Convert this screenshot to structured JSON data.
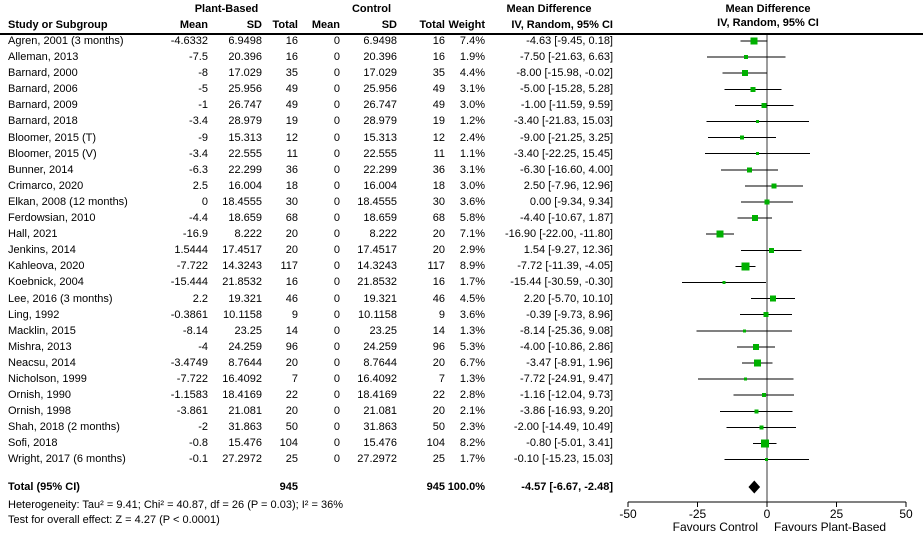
{
  "header": {
    "group1": "Plant-Based",
    "group2": "Control",
    "col_study": "Study or Subgroup",
    "col_mean1": "Mean",
    "col_sd1": "SD",
    "col_total1": "Total",
    "col_mean2": "Mean",
    "col_sd2": "SD",
    "col_total2": "Total",
    "col_weight": "Weight",
    "md_title": "Mean Difference",
    "md_sub": "IV, Random, 95% CI",
    "plot_title": "Mean Difference",
    "plot_sub": "IV, Random, 95% CI"
  },
  "table": {
    "rows": [
      {
        "study": "Agren, 2001 (3 months)",
        "pb_mean": "-4.6332",
        "pb_sd": "6.9498",
        "pb_total": "16",
        "c_mean": "0",
        "c_sd": "6.9498",
        "c_total": "16",
        "weight": "7.4%",
        "md_ci": "-4.63 [-9.45, 0.18]"
      },
      {
        "study": "Alleman, 2013",
        "pb_mean": "-7.5",
        "pb_sd": "20.396",
        "pb_total": "16",
        "c_mean": "0",
        "c_sd": "20.396",
        "c_total": "16",
        "weight": "1.9%",
        "md_ci": "-7.50 [-21.63, 6.63]"
      },
      {
        "study": "Barnard, 2000",
        "pb_mean": "-8",
        "pb_sd": "17.029",
        "pb_total": "35",
        "c_mean": "0",
        "c_sd": "17.029",
        "c_total": "35",
        "weight": "4.4%",
        "md_ci": "-8.00 [-15.98, -0.02]"
      },
      {
        "study": "Barnard, 2006",
        "pb_mean": "-5",
        "pb_sd": "25.956",
        "pb_total": "49",
        "c_mean": "0",
        "c_sd": "25.956",
        "c_total": "49",
        "weight": "3.1%",
        "md_ci": "-5.00 [-15.28, 5.28]"
      },
      {
        "study": "Barnard, 2009",
        "pb_mean": "-1",
        "pb_sd": "26.747",
        "pb_total": "49",
        "c_mean": "0",
        "c_sd": "26.747",
        "c_total": "49",
        "weight": "3.0%",
        "md_ci": "-1.00 [-11.59, 9.59]"
      },
      {
        "study": "Barnard, 2018",
        "pb_mean": "-3.4",
        "pb_sd": "28.979",
        "pb_total": "19",
        "c_mean": "0",
        "c_sd": "28.979",
        "c_total": "19",
        "weight": "1.2%",
        "md_ci": "-3.40 [-21.83, 15.03]"
      },
      {
        "study": "Bloomer, 2015 (T)",
        "pb_mean": "-9",
        "pb_sd": "15.313",
        "pb_total": "12",
        "c_mean": "0",
        "c_sd": "15.313",
        "c_total": "12",
        "weight": "2.4%",
        "md_ci": "-9.00 [-21.25, 3.25]"
      },
      {
        "study": "Bloomer, 2015 (V)",
        "pb_mean": "-3.4",
        "pb_sd": "22.555",
        "pb_total": "11",
        "c_mean": "0",
        "c_sd": "22.555",
        "c_total": "11",
        "weight": "1.1%",
        "md_ci": "-3.40 [-22.25, 15.45]"
      },
      {
        "study": "Bunner, 2014",
        "pb_mean": "-6.3",
        "pb_sd": "22.299",
        "pb_total": "36",
        "c_mean": "0",
        "c_sd": "22.299",
        "c_total": "36",
        "weight": "3.1%",
        "md_ci": "-6.30 [-16.60, 4.00]"
      },
      {
        "study": "Crimarco, 2020",
        "pb_mean": "2.5",
        "pb_sd": "16.004",
        "pb_total": "18",
        "c_mean": "0",
        "c_sd": "16.004",
        "c_total": "18",
        "weight": "3.0%",
        "md_ci": "2.50 [-7.96, 12.96]"
      },
      {
        "study": "Elkan, 2008 (12 months)",
        "pb_mean": "0",
        "pb_sd": "18.4555",
        "pb_total": "30",
        "c_mean": "0",
        "c_sd": "18.4555",
        "c_total": "30",
        "weight": "3.6%",
        "md_ci": "0.00 [-9.34, 9.34]"
      },
      {
        "study": "Ferdowsian, 2010",
        "pb_mean": "-4.4",
        "pb_sd": "18.659",
        "pb_total": "68",
        "c_mean": "0",
        "c_sd": "18.659",
        "c_total": "68",
        "weight": "5.8%",
        "md_ci": "-4.40 [-10.67, 1.87]"
      },
      {
        "study": "Hall, 2021",
        "pb_mean": "-16.9",
        "pb_sd": "8.222",
        "pb_total": "20",
        "c_mean": "0",
        "c_sd": "8.222",
        "c_total": "20",
        "weight": "7.1%",
        "md_ci": "-16.90 [-22.00, -11.80]"
      },
      {
        "study": "Jenkins, 2014",
        "pb_mean": "1.5444",
        "pb_sd": "17.4517",
        "pb_total": "20",
        "c_mean": "0",
        "c_sd": "17.4517",
        "c_total": "20",
        "weight": "2.9%",
        "md_ci": "1.54 [-9.27, 12.36]"
      },
      {
        "study": "Kahleova, 2020",
        "pb_mean": "-7.722",
        "pb_sd": "14.3243",
        "pb_total": "117",
        "c_mean": "0",
        "c_sd": "14.3243",
        "c_total": "117",
        "weight": "8.9%",
        "md_ci": "-7.72 [-11.39, -4.05]"
      },
      {
        "study": "Koebnick, 2004",
        "pb_mean": "-15.444",
        "pb_sd": "21.8532",
        "pb_total": "16",
        "c_mean": "0",
        "c_sd": "21.8532",
        "c_total": "16",
        "weight": "1.7%",
        "md_ci": "-15.44 [-30.59, -0.30]"
      },
      {
        "study": "Lee, 2016 (3 months)",
        "pb_mean": "2.2",
        "pb_sd": "19.321",
        "pb_total": "46",
        "c_mean": "0",
        "c_sd": "19.321",
        "c_total": "46",
        "weight": "4.5%",
        "md_ci": "2.20 [-5.70, 10.10]"
      },
      {
        "study": "Ling, 1992",
        "pb_mean": "-0.3861",
        "pb_sd": "10.1158",
        "pb_total": "9",
        "c_mean": "0",
        "c_sd": "10.1158",
        "c_total": "9",
        "weight": "3.6%",
        "md_ci": "-0.39 [-9.73, 8.96]"
      },
      {
        "study": "Macklin, 2015",
        "pb_mean": "-8.14",
        "pb_sd": "23.25",
        "pb_total": "14",
        "c_mean": "0",
        "c_sd": "23.25",
        "c_total": "14",
        "weight": "1.3%",
        "md_ci": "-8.14 [-25.36, 9.08]"
      },
      {
        "study": "Mishra, 2013",
        "pb_mean": "-4",
        "pb_sd": "24.259",
        "pb_total": "96",
        "c_mean": "0",
        "c_sd": "24.259",
        "c_total": "96",
        "weight": "5.3%",
        "md_ci": "-4.00 [-10.86, 2.86]"
      },
      {
        "study": "Neacsu, 2014",
        "pb_mean": "-3.4749",
        "pb_sd": "8.7644",
        "pb_total": "20",
        "c_mean": "0",
        "c_sd": "8.7644",
        "c_total": "20",
        "weight": "6.7%",
        "md_ci": "-3.47 [-8.91, 1.96]"
      },
      {
        "study": "Nicholson, 1999",
        "pb_mean": "-7.722",
        "pb_sd": "16.4092",
        "pb_total": "7",
        "c_mean": "0",
        "c_sd": "16.4092",
        "c_total": "7",
        "weight": "1.3%",
        "md_ci": "-7.72 [-24.91, 9.47]"
      },
      {
        "study": "Ornish, 1990",
        "pb_mean": "-1.1583",
        "pb_sd": "18.4169",
        "pb_total": "22",
        "c_mean": "0",
        "c_sd": "18.4169",
        "c_total": "22",
        "weight": "2.8%",
        "md_ci": "-1.16 [-12.04, 9.73]"
      },
      {
        "study": "Ornish, 1998",
        "pb_mean": "-3.861",
        "pb_sd": "21.081",
        "pb_total": "20",
        "c_mean": "0",
        "c_sd": "21.081",
        "c_total": "20",
        "weight": "2.1%",
        "md_ci": "-3.86 [-16.93, 9.20]"
      },
      {
        "study": "Shah, 2018 (2 months)",
        "pb_mean": "-2",
        "pb_sd": "31.863",
        "pb_total": "50",
        "c_mean": "0",
        "c_sd": "31.863",
        "c_total": "50",
        "weight": "2.3%",
        "md_ci": "-2.00 [-14.49, 10.49]"
      },
      {
        "study": "Sofi, 2018",
        "pb_mean": "-0.8",
        "pb_sd": "15.476",
        "pb_total": "104",
        "c_mean": "0",
        "c_sd": "15.476",
        "c_total": "104",
        "weight": "8.2%",
        "md_ci": "-0.80 [-5.01, 3.41]"
      },
      {
        "study": "Wright, 2017 (6 months)",
        "pb_mean": "-0.1",
        "pb_sd": "27.2972",
        "pb_total": "25",
        "c_mean": "0",
        "c_sd": "27.2972",
        "c_total": "25",
        "weight": "1.7%",
        "md_ci": "-0.10 [-15.23, 15.03]"
      }
    ],
    "total": {
      "label": "Total (95% CI)",
      "pb_total": "945",
      "c_total": "945",
      "weight": "100.0%",
      "md_ci": "-4.57 [-6.67, -2.48]"
    }
  },
  "footer": {
    "heterogeneity": "Heterogeneity: Tau² = 9.41; Chi² = 40.87, df = 26 (P = 0.03); I² = 36%",
    "overall_effect": "Test for overall effect: Z = 4.27 (P < 0.0001)"
  },
  "chart_data": {
    "type": "scatter",
    "subtype": "forest-plot",
    "title": "Mean Difference",
    "subtitle": "IV, Random, 95% CI",
    "axis": {
      "min": -50,
      "max": 50,
      "ticks": [
        -50,
        -25,
        0,
        25,
        50
      ],
      "favours_left": "Favours Control",
      "favours_right": "Favours Plant-Based"
    },
    "points": [
      {
        "label": "Agren, 2001 (3 months)",
        "md": -4.63,
        "lo": -9.45,
        "hi": 0.18,
        "weight": 7.4
      },
      {
        "label": "Alleman, 2013",
        "md": -7.5,
        "lo": -21.63,
        "hi": 6.63,
        "weight": 1.9
      },
      {
        "label": "Barnard, 2000",
        "md": -8.0,
        "lo": -15.98,
        "hi": -0.02,
        "weight": 4.4
      },
      {
        "label": "Barnard, 2006",
        "md": -5.0,
        "lo": -15.28,
        "hi": 5.28,
        "weight": 3.1
      },
      {
        "label": "Barnard, 2009",
        "md": -1.0,
        "lo": -11.59,
        "hi": 9.59,
        "weight": 3.0
      },
      {
        "label": "Barnard, 2018",
        "md": -3.4,
        "lo": -21.83,
        "hi": 15.03,
        "weight": 1.2
      },
      {
        "label": "Bloomer, 2015 (T)",
        "md": -9.0,
        "lo": -21.25,
        "hi": 3.25,
        "weight": 2.4
      },
      {
        "label": "Bloomer, 2015 (V)",
        "md": -3.4,
        "lo": -22.25,
        "hi": 15.45,
        "weight": 1.1
      },
      {
        "label": "Bunner, 2014",
        "md": -6.3,
        "lo": -16.6,
        "hi": 4.0,
        "weight": 3.1
      },
      {
        "label": "Crimarco, 2020",
        "md": 2.5,
        "lo": -7.96,
        "hi": 12.96,
        "weight": 3.0
      },
      {
        "label": "Elkan, 2008 (12 months)",
        "md": 0.0,
        "lo": -9.34,
        "hi": 9.34,
        "weight": 3.6
      },
      {
        "label": "Ferdowsian, 2010",
        "md": -4.4,
        "lo": -10.67,
        "hi": 1.87,
        "weight": 5.8
      },
      {
        "label": "Hall, 2021",
        "md": -16.9,
        "lo": -22.0,
        "hi": -11.8,
        "weight": 7.1
      },
      {
        "label": "Jenkins, 2014",
        "md": 1.54,
        "lo": -9.27,
        "hi": 12.36,
        "weight": 2.9
      },
      {
        "label": "Kahleova, 2020",
        "md": -7.72,
        "lo": -11.39,
        "hi": -4.05,
        "weight": 8.9
      },
      {
        "label": "Koebnick, 2004",
        "md": -15.44,
        "lo": -30.59,
        "hi": -0.3,
        "weight": 1.7
      },
      {
        "label": "Lee, 2016 (3 months)",
        "md": 2.2,
        "lo": -5.7,
        "hi": 10.1,
        "weight": 4.5
      },
      {
        "label": "Ling, 1992",
        "md": -0.39,
        "lo": -9.73,
        "hi": 8.96,
        "weight": 3.6
      },
      {
        "label": "Macklin, 2015",
        "md": -8.14,
        "lo": -25.36,
        "hi": 9.08,
        "weight": 1.3
      },
      {
        "label": "Mishra, 2013",
        "md": -4.0,
        "lo": -10.86,
        "hi": 2.86,
        "weight": 5.3
      },
      {
        "label": "Neacsu, 2014",
        "md": -3.47,
        "lo": -8.91,
        "hi": 1.96,
        "weight": 6.7
      },
      {
        "label": "Nicholson, 1999",
        "md": -7.72,
        "lo": -24.91,
        "hi": 9.47,
        "weight": 1.3
      },
      {
        "label": "Ornish, 1990",
        "md": -1.16,
        "lo": -12.04,
        "hi": 9.73,
        "weight": 2.8
      },
      {
        "label": "Ornish, 1998",
        "md": -3.86,
        "lo": -16.93,
        "hi": 9.2,
        "weight": 2.1
      },
      {
        "label": "Shah, 2018 (2 months)",
        "md": -2.0,
        "lo": -14.49,
        "hi": 10.49,
        "weight": 2.3
      },
      {
        "label": "Sofi, 2018",
        "md": -0.8,
        "lo": -5.01,
        "hi": 3.41,
        "weight": 8.2
      },
      {
        "label": "Wright, 2017 (6 months)",
        "md": -0.1,
        "lo": -15.23,
        "hi": 15.03,
        "weight": 1.7
      }
    ],
    "diamond": {
      "md": -4.57,
      "lo": -6.67,
      "hi": -2.48
    }
  },
  "colors": {
    "marker": "#00b000",
    "diamond": "#000000",
    "line": "#000000",
    "zero_line": "#3a3a3a"
  }
}
